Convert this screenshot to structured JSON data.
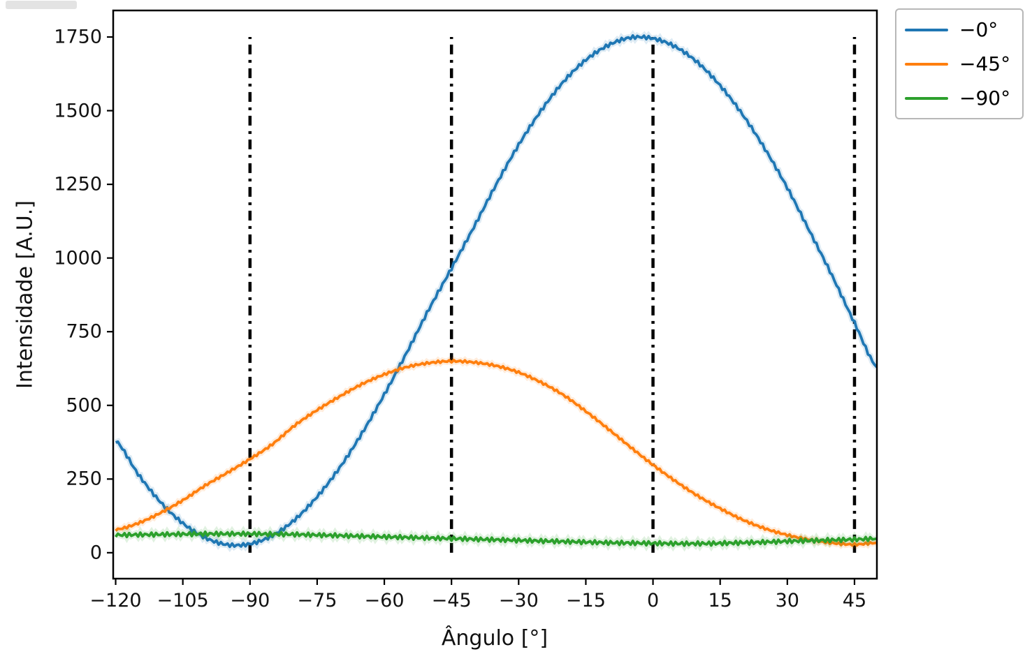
{
  "figure": {
    "background": "#ffffff"
  },
  "chart_data": {
    "type": "line",
    "title": "",
    "xlabel": "Ângulo [°]",
    "ylabel": "Intensidade [A.U.]",
    "xlim": [
      -120.55,
      50
    ],
    "ylim": [
      -88,
      1840
    ],
    "grid": false,
    "frame": "box",
    "axis_color": "#000000",
    "x_ticks": {
      "values": [
        -120,
        -105,
        -90,
        -75,
        -60,
        -45,
        -30,
        -15,
        0,
        15,
        30,
        45
      ],
      "labels": [
        "−120",
        "−105",
        "−90",
        "−75",
        "−60",
        "−45",
        "−30",
        "−15",
        "0",
        "15",
        "30",
        "45"
      ]
    },
    "y_ticks": {
      "values": [
        0,
        250,
        500,
        750,
        1000,
        1250,
        1500,
        1750
      ],
      "labels": [
        "0",
        "250",
        "500",
        "750",
        "1000",
        "1250",
        "1500",
        "1750"
      ]
    },
    "x": [
      -120,
      -115,
      -110,
      -105,
      -100,
      -95,
      -90,
      -85,
      -80,
      -75,
      -70,
      -65,
      -60,
      -55,
      -50,
      -45,
      -40,
      -35,
      -30,
      -25,
      -20,
      -15,
      -10,
      -5,
      0,
      5,
      10,
      15,
      20,
      25,
      30,
      35,
      40,
      45,
      50
    ],
    "series": [
      {
        "name": "−0°",
        "color": "#1f77b4",
        "ripple": 6,
        "values": [
          380,
          267,
          172,
          100,
          51,
          27,
          30,
          58,
          112,
          190,
          288,
          405,
          537,
          679,
          827,
          965,
          1105,
          1250,
          1384,
          1500,
          1598,
          1672,
          1722,
          1748,
          1745,
          1717,
          1663,
          1585,
          1487,
          1370,
          1238,
          1090,
          940,
          780,
          630
        ]
      },
      {
        "name": "−45°",
        "color": "#ff7f0e",
        "ripple": 4,
        "values": [
          78,
          100,
          135,
          178,
          228,
          272,
          318,
          368,
          432,
          484,
          530,
          572,
          605,
          630,
          644,
          650,
          646,
          634,
          612,
          578,
          535,
          480,
          420,
          358,
          298,
          243,
          193,
          150,
          112,
          82,
          60,
          44,
          33,
          28,
          34
        ]
      },
      {
        "name": "−90°",
        "color": "#2ca02c",
        "ripple": 7,
        "values": [
          60,
          61,
          62,
          63,
          64,
          64,
          64,
          63,
          62,
          60,
          58,
          56,
          54,
          52,
          50,
          48,
          46,
          44,
          42,
          40,
          38,
          36,
          34,
          33,
          32,
          31,
          31,
          32,
          34,
          36,
          39,
          41,
          43,
          45,
          48
        ]
      }
    ],
    "vlines": {
      "x": [
        -90,
        -45,
        0,
        45
      ],
      "ymin": 0,
      "ymax": 1750,
      "color": "#000000",
      "style": "dashdot"
    },
    "legend": {
      "position": "upper-right-outside",
      "entries": [
        {
          "label": "−0°",
          "color": "#1f77b4"
        },
        {
          "label": "−45°",
          "color": "#ff7f0e"
        },
        {
          "label": "−90°",
          "color": "#2ca02c"
        }
      ]
    }
  }
}
